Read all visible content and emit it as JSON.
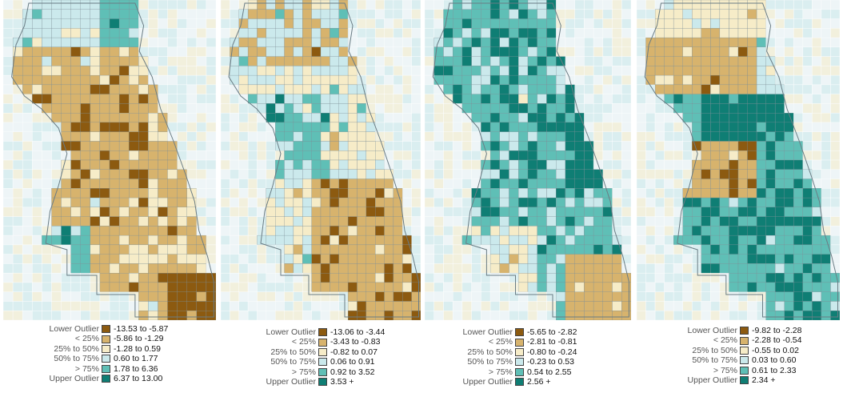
{
  "palette": {
    "lower_outlier": "#8c5a10",
    "q1": "#d7b36d",
    "q2": "#f6ecc8",
    "q3": "#cbe9ec",
    "q4": "#5fbfb6",
    "upper_outlier": "#0f7e74",
    "background_tract": "#eef5f7",
    "boundary": "#7b8d95"
  },
  "legend_labels": [
    "Lower Outlier",
    "< 25%",
    "25% to 50%",
    "50% to 75%",
    "> 75%",
    "Upper Outlier"
  ],
  "maps": [
    {
      "id": "map-1",
      "ranges": [
        "-13.53 to -5.87",
        "-5.86 to -1.29",
        "-1.28 to 0.59",
        "0.60 to 1.77",
        "1.78 to 6.36",
        "6.37 to 13.00"
      ]
    },
    {
      "id": "map-2",
      "ranges": [
        "-13.06 to -3.44",
        "-3.43 to -0.83",
        "-0.82 to 0.07",
        "0.06 to 0.91",
        "0.92 to 3.52",
        "3.53 +"
      ]
    },
    {
      "id": "map-3",
      "ranges": [
        "-5.65 to -2.82",
        "-2.81 to -0.81",
        "-0.80 to -0.24",
        "-0.23 to 0.53",
        "0.54 to 2.55",
        "2.56 +"
      ]
    },
    {
      "id": "map-4",
      "ranges": [
        "-9.82 to -2.28",
        "-2.28 to -0.54",
        "-0.55 to 0.02",
        "0.03 to 0.60",
        "0.61 to 2.33",
        "2.34 +"
      ]
    }
  ]
}
